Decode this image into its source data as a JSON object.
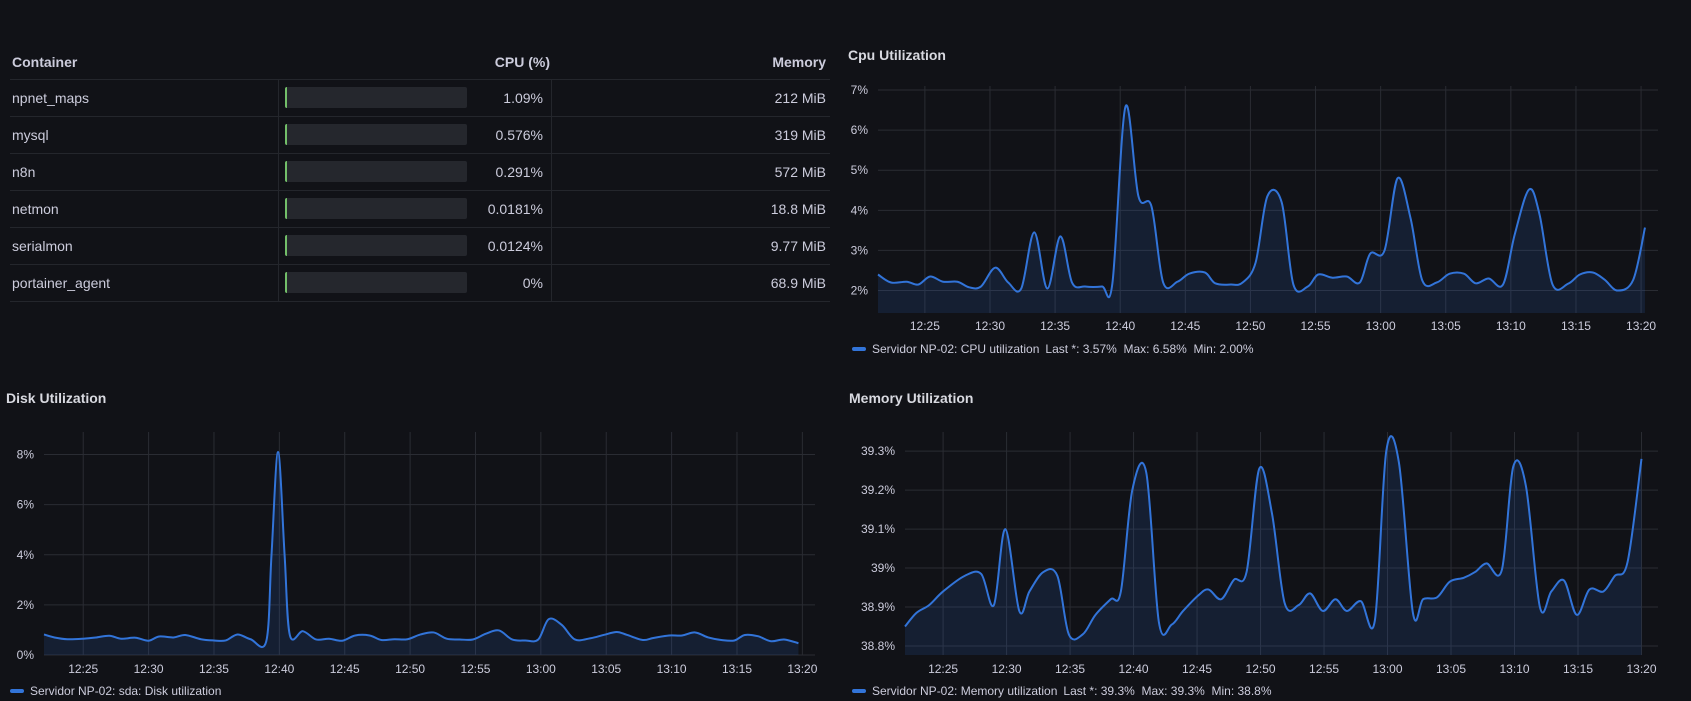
{
  "table": {
    "headers": {
      "container": "Container",
      "cpu": "CPU (%)",
      "memory": "Memory"
    },
    "rows": [
      {
        "container": "npnet_maps",
        "cpu": "1.09%",
        "cpu_fraction": 0.0109,
        "memory": "212 MiB"
      },
      {
        "container": "mysql",
        "cpu": "0.576%",
        "cpu_fraction": 0.00576,
        "memory": "319 MiB"
      },
      {
        "container": "n8n",
        "cpu": "0.291%",
        "cpu_fraction": 0.00291,
        "memory": "572 MiB"
      },
      {
        "container": "netmon",
        "cpu": "0.0181%",
        "cpu_fraction": 0.000181,
        "memory": "18.8 MiB"
      },
      {
        "container": "serialmon",
        "cpu": "0.0124%",
        "cpu_fraction": 0.000124,
        "memory": "9.77 MiB"
      },
      {
        "container": "portainer_agent",
        "cpu": "0%",
        "cpu_fraction": 0,
        "memory": "68.9 MiB"
      }
    ],
    "bar_color": "#73bf69"
  },
  "colors": {
    "line": "#3274d9",
    "background": "#111217",
    "grid": "#2a2c33"
  },
  "chart_data": [
    {
      "id": "cpu",
      "type": "area",
      "title": "Cpu Utilization",
      "xlim": [
        "12:21:24",
        "13:21:18"
      ],
      "ylim": [
        1.44,
        7.1
      ],
      "yticks": [
        2,
        3,
        4,
        5,
        6,
        7
      ],
      "ytick_labels": [
        "2%",
        "3%",
        "4%",
        "5%",
        "6%",
        "7%"
      ],
      "xticks": [
        "12:25",
        "12:30",
        "12:35",
        "12:40",
        "12:45",
        "12:50",
        "12:55",
        "13:00",
        "13:05",
        "13:10",
        "13:15",
        "13:20"
      ],
      "grid": true,
      "legend_position": "bottom-left",
      "legend": {
        "name": "Servidor NP-02: CPU utilization",
        "stats": "Last *: 3.57%  Max: 6.58%  Min: 2.00%"
      },
      "series": [
        {
          "name": "Servidor NP-02: CPU utilization",
          "points": [
            [
              "12:21:24",
              2.4
            ],
            [
              "12:22:24",
              2.2
            ],
            [
              "12:23:36",
              2.22
            ],
            [
              "12:24:30",
              2.15
            ],
            [
              "12:25:24",
              2.35
            ],
            [
              "12:26:24",
              2.22
            ],
            [
              "12:27:30",
              2.22
            ],
            [
              "12:28:24",
              2.08
            ],
            [
              "12:29:18",
              2.1
            ],
            [
              "12:30:24",
              2.57
            ],
            [
              "12:31:24",
              2.2
            ],
            [
              "12:32:24",
              2.05
            ],
            [
              "12:33:24",
              3.45
            ],
            [
              "12:34:24",
              2.05
            ],
            [
              "12:35:24",
              3.35
            ],
            [
              "12:36:18",
              2.2
            ],
            [
              "12:37:18",
              2.1
            ],
            [
              "12:38:36",
              2.1
            ],
            [
              "12:39:24",
              2.18
            ],
            [
              "12:40:24",
              6.58
            ],
            [
              "12:41:24",
              4.35
            ],
            [
              "12:42:24",
              4.1
            ],
            [
              "12:43:18",
              2.2
            ],
            [
              "12:44:24",
              2.22
            ],
            [
              "12:45:18",
              2.42
            ],
            [
              "12:46:30",
              2.45
            ],
            [
              "12:47:18",
              2.18
            ],
            [
              "12:48:30",
              2.15
            ],
            [
              "12:49:24",
              2.2
            ],
            [
              "12:50:24",
              2.7
            ],
            [
              "12:51:18",
              4.35
            ],
            [
              "12:52:24",
              4.2
            ],
            [
              "12:53:18",
              2.15
            ],
            [
              "12:54:24",
              2.1
            ],
            [
              "12:55:12",
              2.4
            ],
            [
              "12:56:18",
              2.32
            ],
            [
              "12:57:24",
              2.35
            ],
            [
              "12:58:24",
              2.2
            ],
            [
              "12:59:12",
              2.92
            ],
            [
              "13:00:18",
              3.0
            ],
            [
              "13:01:18",
              4.8
            ],
            [
              "13:02:18",
              3.8
            ],
            [
              "13:03:12",
              2.25
            ],
            [
              "13:04:18",
              2.2
            ],
            [
              "13:05:18",
              2.42
            ],
            [
              "13:06:24",
              2.42
            ],
            [
              "13:07:18",
              2.18
            ],
            [
              "13:08:18",
              2.3
            ],
            [
              "13:09:24",
              2.15
            ],
            [
              "13:10:18",
              3.4
            ],
            [
              "13:11:24",
              4.52
            ],
            [
              "13:12:12",
              3.9
            ],
            [
              "13:13:12",
              2.15
            ],
            [
              "13:14:24",
              2.17
            ],
            [
              "13:15:18",
              2.4
            ],
            [
              "13:16:18",
              2.45
            ],
            [
              "13:17:12",
              2.27
            ],
            [
              "13:18:12",
              2.0
            ],
            [
              "13:19:24",
              2.27
            ],
            [
              "13:20:18",
              3.57
            ]
          ]
        }
      ]
    },
    {
      "id": "disk",
      "type": "area",
      "title": "Disk Utilization",
      "xlim": [
        "12:22:00",
        "13:20:58"
      ],
      "ylim": [
        0,
        8.9
      ],
      "yticks": [
        0,
        2,
        4,
        6,
        8
      ],
      "ytick_labels": [
        "0%",
        "2%",
        "4%",
        "6%",
        "8%"
      ],
      "xticks": [
        "12:25",
        "12:30",
        "12:35",
        "12:40",
        "12:45",
        "12:50",
        "12:55",
        "13:00",
        "13:05",
        "13:10",
        "13:15",
        "13:20"
      ],
      "grid": true,
      "legend_position": "bottom-left",
      "legend": {
        "name": "Servidor NP-02: sda: Disk utilization",
        "stats": ""
      },
      "series": [
        {
          "name": "Servidor NP-02: sda: Disk utilization",
          "points": [
            [
              "12:22:00",
              0.82
            ],
            [
              "12:22:48",
              0.7
            ],
            [
              "12:23:48",
              0.63
            ],
            [
              "12:25:00",
              0.65
            ],
            [
              "12:26:00",
              0.7
            ],
            [
              "12:27:00",
              0.77
            ],
            [
              "12:27:54",
              0.65
            ],
            [
              "12:29:00",
              0.69
            ],
            [
              "12:30:00",
              0.57
            ],
            [
              "12:30:48",
              0.74
            ],
            [
              "12:31:54",
              0.7
            ],
            [
              "12:32:48",
              0.8
            ],
            [
              "12:34:00",
              0.63
            ],
            [
              "12:35:00",
              0.58
            ],
            [
              "12:35:54",
              0.58
            ],
            [
              "12:36:48",
              0.82
            ],
            [
              "12:37:48",
              0.63
            ],
            [
              "12:39:00",
              0.55
            ],
            [
              "12:39:24",
              4.0
            ],
            [
              "12:39:54",
              8.1
            ],
            [
              "12:40:24",
              4.0
            ],
            [
              "12:40:48",
              0.8
            ],
            [
              "12:41:48",
              0.95
            ],
            [
              "12:42:48",
              0.62
            ],
            [
              "12:43:48",
              0.65
            ],
            [
              "12:44:48",
              0.57
            ],
            [
              "12:45:48",
              0.78
            ],
            [
              "12:46:54",
              0.78
            ],
            [
              "12:47:48",
              0.6
            ],
            [
              "12:48:48",
              0.63
            ],
            [
              "12:49:48",
              0.63
            ],
            [
              "12:50:48",
              0.82
            ],
            [
              "12:51:48",
              0.9
            ],
            [
              "12:52:48",
              0.65
            ],
            [
              "12:53:48",
              0.62
            ],
            [
              "12:54:48",
              0.62
            ],
            [
              "12:55:48",
              0.85
            ],
            [
              "12:56:48",
              0.98
            ],
            [
              "12:57:48",
              0.62
            ],
            [
              "12:58:48",
              0.58
            ],
            [
              "12:59:48",
              0.62
            ],
            [
              "13:00:36",
              1.43
            ],
            [
              "13:01:36",
              1.2
            ],
            [
              "13:02:36",
              0.62
            ],
            [
              "13:03:48",
              0.67
            ],
            [
              "13:04:48",
              0.8
            ],
            [
              "13:05:48",
              0.92
            ],
            [
              "13:06:36",
              0.8
            ],
            [
              "13:07:48",
              0.6
            ],
            [
              "13:08:36",
              0.68
            ],
            [
              "13:09:48",
              0.78
            ],
            [
              "13:10:48",
              0.78
            ],
            [
              "13:11:48",
              0.9
            ],
            [
              "13:12:48",
              0.7
            ],
            [
              "13:13:48",
              0.6
            ],
            [
              "13:14:48",
              0.58
            ],
            [
              "13:15:36",
              0.8
            ],
            [
              "13:16:36",
              0.75
            ],
            [
              "13:17:36",
              0.55
            ],
            [
              "13:18:36",
              0.62
            ],
            [
              "13:19:42",
              0.47
            ]
          ]
        }
      ]
    },
    {
      "id": "memory",
      "type": "area",
      "title": "Memory Utilization",
      "xlim": [
        "12:22:00",
        "13:21:18"
      ],
      "ylim": [
        38.777,
        39.349
      ],
      "yticks": [
        38.8,
        38.9,
        39.0,
        39.1,
        39.2,
        39.3
      ],
      "ytick_labels": [
        "38.8%",
        "38.9%",
        "39%",
        "39.1%",
        "39.2%",
        "39.3%"
      ],
      "xticks": [
        "12:25",
        "12:30",
        "12:35",
        "12:40",
        "12:45",
        "12:50",
        "12:55",
        "13:00",
        "13:05",
        "13:10",
        "13:15",
        "13:20"
      ],
      "grid": true,
      "legend_position": "bottom-left",
      "legend": {
        "name": "Servidor NP-02: Memory utilization",
        "stats": "Last *: 39.3%  Max: 39.3%  Min: 38.8%"
      },
      "series": [
        {
          "name": "Servidor NP-02: Memory utilization",
          "points": [
            [
              "12:22:00",
              38.85
            ],
            [
              "12:22:54",
              38.885
            ],
            [
              "12:23:54",
              38.905
            ],
            [
              "12:25:00",
              38.94
            ],
            [
              "12:26:42",
              38.98
            ],
            [
              "12:28:00",
              38.985
            ],
            [
              "12:29:00",
              38.905
            ],
            [
              "12:29:54",
              39.1
            ],
            [
              "12:31:00",
              38.89
            ],
            [
              "12:31:48",
              38.94
            ],
            [
              "12:32:54",
              38.99
            ],
            [
              "12:34:00",
              38.98
            ],
            [
              "12:34:54",
              38.83
            ],
            [
              "12:36:00",
              38.83
            ],
            [
              "12:37:00",
              38.88
            ],
            [
              "12:38:12",
              38.92
            ],
            [
              "12:39:00",
              38.94
            ],
            [
              "12:39:54",
              39.2
            ],
            [
              "12:41:00",
              39.245
            ],
            [
              "12:42:00",
              38.86
            ],
            [
              "12:43:00",
              38.855
            ],
            [
              "12:43:54",
              38.89
            ],
            [
              "12:45:06",
              38.93
            ],
            [
              "12:45:54",
              38.945
            ],
            [
              "12:46:54",
              38.92
            ],
            [
              "12:47:54",
              38.97
            ],
            [
              "12:48:54",
              38.99
            ],
            [
              "12:49:54",
              39.255
            ],
            [
              "12:50:54",
              39.14
            ],
            [
              "12:51:54",
              38.91
            ],
            [
              "12:53:00",
              38.905
            ],
            [
              "12:53:54",
              38.935
            ],
            [
              "12:54:54",
              38.89
            ],
            [
              "12:55:54",
              38.92
            ],
            [
              "12:56:48",
              38.89
            ],
            [
              "12:57:54",
              38.915
            ],
            [
              "12:59:00",
              38.865
            ],
            [
              "12:59:54",
              39.3
            ],
            [
              "13:00:54",
              39.27
            ],
            [
              "13:02:00",
              38.885
            ],
            [
              "13:02:48",
              38.92
            ],
            [
              "13:03:54",
              38.925
            ],
            [
              "13:04:54",
              38.965
            ],
            [
              "13:06:00",
              38.975
            ],
            [
              "13:06:54",
              38.99
            ],
            [
              "13:07:48",
              39.012
            ],
            [
              "13:09:00",
              38.995
            ],
            [
              "13:09:54",
              39.26
            ],
            [
              "13:10:54",
              39.21
            ],
            [
              "13:12:00",
              38.9
            ],
            [
              "13:12:54",
              38.94
            ],
            [
              "13:13:54",
              38.968
            ],
            [
              "13:14:54",
              38.88
            ],
            [
              "13:15:54",
              38.945
            ],
            [
              "13:17:00",
              38.94
            ],
            [
              "13:17:54",
              38.98
            ],
            [
              "13:18:54",
              39.015
            ],
            [
              "13:20:00",
              39.28
            ]
          ]
        }
      ]
    }
  ]
}
